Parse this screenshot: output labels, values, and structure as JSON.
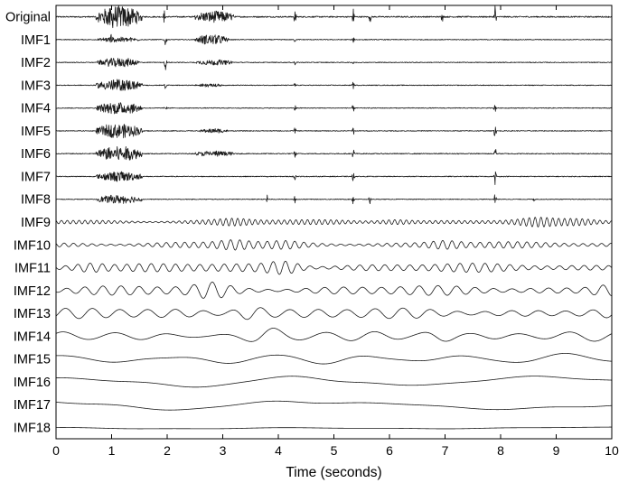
{
  "chart_data": {
    "type": "line",
    "xlabel": "Time (seconds)",
    "xlim": [
      0,
      10
    ],
    "xticks": [
      "0",
      "1",
      "2",
      "3",
      "4",
      "5",
      "6",
      "7",
      "8",
      "9",
      "10"
    ],
    "grid": false,
    "series": [
      {
        "name": "Original",
        "kind": "burst",
        "amplitude": 1.0,
        "bursts": [
          [
            0.72,
            1.55,
            1.0
          ],
          [
            2.5,
            3.2,
            0.55
          ]
        ],
        "spikes": [
          [
            1.0,
            0.5
          ],
          [
            1.95,
            0.5
          ],
          [
            4.3,
            0.5
          ],
          [
            5.35,
            0.6
          ],
          [
            5.65,
            0.4
          ],
          [
            6.95,
            0.35
          ],
          [
            7.9,
            0.9
          ]
        ]
      },
      {
        "name": "IMF1",
        "kind": "burst",
        "amplitude": 0.6,
        "bursts": [
          [
            0.75,
            1.5,
            0.4
          ],
          [
            2.5,
            3.1,
            0.8
          ]
        ],
        "spikes": [
          [
            1.0,
            0.6
          ],
          [
            1.97,
            0.8
          ],
          [
            4.3,
            0.3
          ],
          [
            5.35,
            0.4
          ]
        ]
      },
      {
        "name": "IMF2",
        "kind": "burst",
        "amplitude": 0.6,
        "bursts": [
          [
            0.75,
            1.5,
            0.7
          ],
          [
            2.5,
            3.2,
            0.4
          ]
        ],
        "spikes": [
          [
            1.97,
            0.9
          ],
          [
            4.3,
            0.3
          ],
          [
            5.35,
            0.4
          ]
        ]
      },
      {
        "name": "IMF3",
        "kind": "burst",
        "amplitude": 0.6,
        "bursts": [
          [
            0.72,
            1.55,
            0.9
          ],
          [
            2.5,
            3.0,
            0.25
          ]
        ],
        "spikes": [
          [
            1.97,
            0.4
          ],
          [
            4.3,
            0.3
          ],
          [
            5.35,
            0.4
          ]
        ]
      },
      {
        "name": "IMF4",
        "kind": "burst",
        "amplitude": 0.6,
        "bursts": [
          [
            0.72,
            1.55,
            0.9
          ]
        ],
        "spikes": [
          [
            1.97,
            0.4
          ],
          [
            4.3,
            0.4
          ],
          [
            5.35,
            0.5
          ],
          [
            7.9,
            0.5
          ]
        ]
      },
      {
        "name": "IMF5",
        "kind": "burst",
        "amplitude": 0.65,
        "bursts": [
          [
            0.72,
            1.55,
            1.0
          ],
          [
            2.6,
            3.1,
            0.3
          ]
        ],
        "spikes": [
          [
            4.3,
            0.4
          ],
          [
            5.35,
            0.6
          ],
          [
            7.9,
            0.8
          ]
        ]
      },
      {
        "name": "IMF6",
        "kind": "burst",
        "amplitude": 0.7,
        "bursts": [
          [
            0.72,
            1.55,
            1.0
          ],
          [
            2.5,
            3.2,
            0.35
          ]
        ],
        "spikes": [
          [
            4.3,
            0.5
          ],
          [
            5.35,
            0.6
          ],
          [
            7.9,
            0.9
          ]
        ]
      },
      {
        "name": "IMF7",
        "kind": "burst",
        "amplitude": 0.65,
        "bursts": [
          [
            0.72,
            1.55,
            0.7
          ]
        ],
        "spikes": [
          [
            3.8,
            0.3
          ],
          [
            4.3,
            0.4
          ],
          [
            5.35,
            0.6
          ],
          [
            7.9,
            0.9
          ]
        ]
      },
      {
        "name": "IMF8",
        "kind": "burst",
        "amplitude": 0.55,
        "bursts": [
          [
            0.72,
            1.55,
            0.7
          ]
        ],
        "spikes": [
          [
            3.8,
            0.5
          ],
          [
            4.3,
            0.5
          ],
          [
            5.35,
            0.9
          ],
          [
            5.65,
            0.6
          ],
          [
            7.9,
            0.8
          ],
          [
            8.6,
            0.3
          ]
        ]
      },
      {
        "name": "IMF9",
        "kind": "osc",
        "freq": 9.5,
        "amplitude": 0.3,
        "emph": [
          [
            3.2,
            0.6
          ],
          [
            6.1,
            0.6
          ],
          [
            8.65,
            0.8
          ],
          [
            9.4,
            0.5
          ]
        ]
      },
      {
        "name": "IMF10",
        "kind": "osc",
        "freq": 6.0,
        "amplitude": 0.35,
        "emph": [
          [
            3.2,
            0.9
          ],
          [
            7.0,
            0.8
          ],
          [
            4.1,
            0.5
          ]
        ]
      },
      {
        "name": "IMF11",
        "kind": "osc",
        "freq": 4.5,
        "amplitude": 0.5,
        "emph": [
          [
            4.1,
            1.0
          ],
          [
            0.6,
            0.7
          ]
        ]
      },
      {
        "name": "IMF12",
        "kind": "osc",
        "freq": 3.0,
        "amplitude": 0.55,
        "emph": [
          [
            2.8,
            0.9
          ],
          [
            9.9,
            0.7
          ]
        ]
      },
      {
        "name": "IMF13",
        "kind": "osc",
        "freq": 2.0,
        "amplitude": 0.6,
        "emph": [
          [
            3.5,
            0.9
          ]
        ]
      },
      {
        "name": "IMF14",
        "kind": "osc",
        "freq": 1.1,
        "amplitude": 0.55,
        "emph": [
          [
            3.8,
            0.9
          ],
          [
            6.9,
            0.8
          ]
        ]
      },
      {
        "name": "IMF15",
        "kind": "osc",
        "freq": 0.55,
        "amplitude": 0.6,
        "emph": []
      },
      {
        "name": "IMF16",
        "kind": "osc",
        "freq": 0.22,
        "amplitude": 0.7,
        "emph": []
      },
      {
        "name": "IMF17",
        "kind": "osc",
        "freq": 0.16,
        "amplitude": 0.7,
        "emph": []
      },
      {
        "name": "IMF18",
        "kind": "osc",
        "freq": 0.05,
        "amplitude": 0.2,
        "emph": []
      }
    ]
  }
}
